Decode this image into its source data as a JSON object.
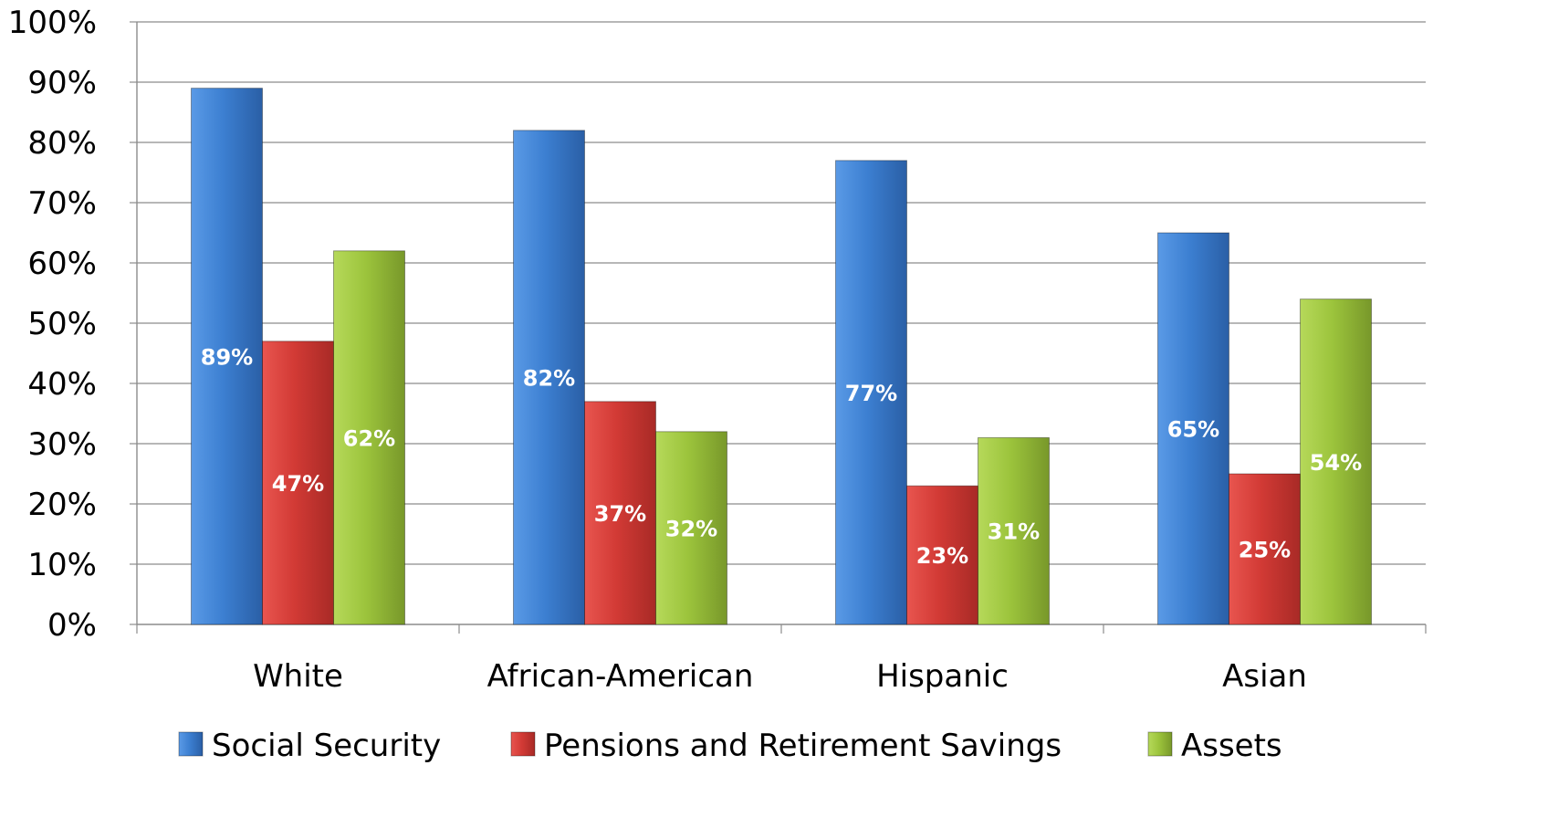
{
  "chart_data": {
    "type": "bar",
    "categories": [
      "White",
      "African-American",
      "Hispanic",
      "Asian"
    ],
    "series": [
      {
        "name": "Social Security",
        "values": [
          89,
          82,
          77,
          65
        ],
        "labels": [
          "89%",
          "82%",
          "77%",
          "65%"
        ],
        "color": "#3c7fd1"
      },
      {
        "name": "Pensions and Retirement Savings",
        "values": [
          47,
          37,
          23,
          25
        ],
        "labels": [
          "47%",
          "37%",
          "23%",
          "25%"
        ],
        "color": "#d23a35"
      },
      {
        "name": "Assets",
        "values": [
          62,
          32,
          31,
          54
        ],
        "labels": [
          "62%",
          "32%",
          "31%",
          "54%"
        ],
        "color": "#9cc43c"
      }
    ],
    "ylim": [
      0,
      100
    ],
    "yticks": [
      "0%",
      "10%",
      "20%",
      "30%",
      "40%",
      "50%",
      "60%",
      "70%",
      "80%",
      "90%",
      "100%"
    ],
    "grid": true,
    "legend_position": "bottom"
  }
}
